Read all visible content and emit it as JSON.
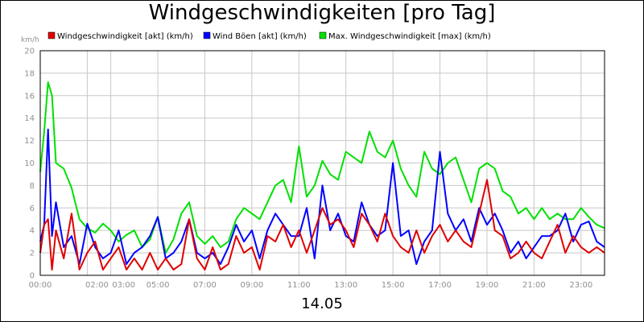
{
  "chart_data": {
    "type": "line",
    "title": "Windgeschwindigkeiten [pro Tag]",
    "xlabel": "14.05",
    "ylabel": "km/h",
    "ylim": [
      0,
      20
    ],
    "xlim": [
      "00:00",
      "24:00"
    ],
    "yticks": [
      "0",
      "2",
      "4",
      "6",
      "8",
      "10",
      "12",
      "14",
      "16",
      "18",
      "20"
    ],
    "xticks": [
      {
        "t": "00:00",
        "label": "00:00"
      },
      {
        "t": "02:00",
        "label": "02:00"
      },
      {
        "t": "03:00",
        "label": "03:00"
      },
      {
        "t": "05:00",
        "label": "05:00"
      },
      {
        "t": "07:00",
        "label": "07:00"
      },
      {
        "t": "09:00",
        "label": "09:00"
      },
      {
        "t": "11:00",
        "label": "11:00"
      },
      {
        "t": "13:00",
        "label": "13:00"
      },
      {
        "t": "15:00",
        "label": "15:00"
      },
      {
        "t": "17:00",
        "label": "17:00"
      },
      {
        "t": "19:00",
        "label": "19:00"
      },
      {
        "t": "21:00",
        "label": "21:00"
      },
      {
        "t": "23:00",
        "label": "23:00"
      }
    ],
    "grid": true,
    "legend_position": "top",
    "series": [
      {
        "name": "Max. Windgeschwindigkeit [max] (km/h)",
        "color": "#00e000",
        "x": [
          "00:00",
          "00:10",
          "00:20",
          "00:30",
          "00:40",
          "01:00",
          "01:20",
          "01:40",
          "02:00",
          "02:20",
          "02:40",
          "03:00",
          "03:20",
          "03:40",
          "04:00",
          "04:20",
          "04:40",
          "05:00",
          "05:20",
          "05:40",
          "06:00",
          "06:20",
          "06:40",
          "07:00",
          "07:20",
          "07:40",
          "08:00",
          "08:20",
          "08:40",
          "09:00",
          "09:20",
          "09:40",
          "10:00",
          "10:20",
          "10:40",
          "11:00",
          "11:20",
          "11:40",
          "12:00",
          "12:20",
          "12:40",
          "13:00",
          "13:20",
          "13:40",
          "14:00",
          "14:20",
          "14:40",
          "15:00",
          "15:20",
          "15:40",
          "16:00",
          "16:20",
          "16:40",
          "17:00",
          "17:20",
          "17:40",
          "18:00",
          "18:20",
          "18:40",
          "19:00",
          "19:20",
          "19:40",
          "20:00",
          "20:20",
          "20:40",
          "21:00",
          "21:20",
          "21:40",
          "22:00",
          "22:20",
          "22:40",
          "23:00",
          "23:20",
          "23:40",
          "24:00"
        ],
        "values": [
          9.2,
          12.8,
          17.2,
          16.0,
          10.0,
          9.5,
          7.8,
          5.0,
          4.2,
          3.8,
          4.6,
          4.0,
          3.0,
          3.6,
          4.0,
          2.5,
          3.2,
          5.2,
          2.0,
          3.2,
          5.5,
          6.5,
          3.5,
          2.8,
          3.5,
          2.5,
          3.0,
          5.0,
          6.0,
          5.5,
          5.0,
          6.5,
          8.0,
          8.5,
          6.5,
          11.5,
          7.0,
          8.0,
          10.2,
          9.0,
          8.5,
          11.0,
          10.5,
          10.0,
          12.8,
          11.0,
          10.5,
          12.0,
          9.5,
          8.0,
          7.0,
          11.0,
          9.5,
          9.0,
          10.0,
          10.5,
          8.5,
          6.5,
          9.5,
          10.0,
          9.5,
          7.5,
          7.0,
          5.5,
          6.0,
          5.0,
          6.0,
          5.0,
          5.5,
          5.0,
          5.0,
          6.0,
          5.2,
          4.5,
          4.2
        ]
      },
      {
        "name": "Wind Böen [akt] (km/h)",
        "color": "#0000ff",
        "x": [
          "00:00",
          "00:10",
          "00:20",
          "00:30",
          "00:40",
          "01:00",
          "01:20",
          "01:40",
          "02:00",
          "02:20",
          "02:40",
          "03:00",
          "03:20",
          "03:40",
          "04:00",
          "04:20",
          "04:40",
          "05:00",
          "05:20",
          "05:40",
          "06:00",
          "06:20",
          "06:40",
          "07:00",
          "07:20",
          "07:40",
          "08:00",
          "08:20",
          "08:40",
          "09:00",
          "09:20",
          "09:40",
          "10:00",
          "10:20",
          "10:40",
          "11:00",
          "11:20",
          "11:40",
          "12:00",
          "12:20",
          "12:40",
          "13:00",
          "13:20",
          "13:40",
          "14:00",
          "14:20",
          "14:40",
          "15:00",
          "15:20",
          "15:40",
          "16:00",
          "16:20",
          "16:40",
          "17:00",
          "17:20",
          "17:40",
          "18:00",
          "18:20",
          "18:40",
          "19:00",
          "19:20",
          "19:40",
          "20:00",
          "20:20",
          "20:40",
          "21:00",
          "21:20",
          "21:40",
          "22:00",
          "22:20",
          "22:40",
          "23:00",
          "23:20",
          "23:40",
          "24:00"
        ],
        "values": [
          3.0,
          4.5,
          13.0,
          3.5,
          6.5,
          2.5,
          3.5,
          1.0,
          4.6,
          2.5,
          1.5,
          2.0,
          4.0,
          1.0,
          2.0,
          2.5,
          3.5,
          5.2,
          1.5,
          2.0,
          3.0,
          5.0,
          2.0,
          1.5,
          2.0,
          1.0,
          2.5,
          4.5,
          3.0,
          4.0,
          1.5,
          4.0,
          5.5,
          4.5,
          3.5,
          3.5,
          6.0,
          1.5,
          8.0,
          4.0,
          5.5,
          3.5,
          3.0,
          6.5,
          4.5,
          3.5,
          4.0,
          10.0,
          3.5,
          4.0,
          1.0,
          3.0,
          4.0,
          11.0,
          5.5,
          4.0,
          5.0,
          3.0,
          6.0,
          4.5,
          5.5,
          4.0,
          2.0,
          3.0,
          1.5,
          2.5,
          3.5,
          3.5,
          4.0,
          5.5,
          3.0,
          4.5,
          4.8,
          3.0,
          2.5
        ]
      },
      {
        "name": "Windgeschwindigkeit [akt] (km/h)",
        "color": "#e00000",
        "x": [
          "00:00",
          "00:10",
          "00:20",
          "00:30",
          "00:40",
          "01:00",
          "01:20",
          "01:40",
          "02:00",
          "02:20",
          "02:40",
          "03:00",
          "03:20",
          "03:40",
          "04:00",
          "04:20",
          "04:40",
          "05:00",
          "05:20",
          "05:40",
          "06:00",
          "06:20",
          "06:40",
          "07:00",
          "07:20",
          "07:40",
          "08:00",
          "08:20",
          "08:40",
          "09:00",
          "09:20",
          "09:40",
          "10:00",
          "10:20",
          "10:40",
          "11:00",
          "11:20",
          "11:40",
          "12:00",
          "12:20",
          "12:40",
          "13:00",
          "13:20",
          "13:40",
          "14:00",
          "14:20",
          "14:40",
          "15:00",
          "15:20",
          "15:40",
          "16:00",
          "16:20",
          "16:40",
          "17:00",
          "17:20",
          "17:40",
          "18:00",
          "18:20",
          "18:40",
          "19:00",
          "19:20",
          "19:40",
          "20:00",
          "20:20",
          "20:40",
          "21:00",
          "21:20",
          "21:40",
          "22:00",
          "22:20",
          "22:40",
          "23:00",
          "23:20",
          "23:40",
          "24:00"
        ],
        "values": [
          2.0,
          4.5,
          5.0,
          0.5,
          4.0,
          1.5,
          5.5,
          0.5,
          2.0,
          3.0,
          0.5,
          1.5,
          2.5,
          0.5,
          1.5,
          0.5,
          2.0,
          0.5,
          1.5,
          0.5,
          1.0,
          5.0,
          1.5,
          0.5,
          2.5,
          0.5,
          1.0,
          3.5,
          2.0,
          2.5,
          0.5,
          3.5,
          3.0,
          4.5,
          2.5,
          4.0,
          2.0,
          4.0,
          6.0,
          4.5,
          5.0,
          4.0,
          2.5,
          5.5,
          4.5,
          3.0,
          5.5,
          3.5,
          2.5,
          2.0,
          4.0,
          2.0,
          3.5,
          4.5,
          3.0,
          4.0,
          3.0,
          2.5,
          5.5,
          8.5,
          4.0,
          3.5,
          1.5,
          2.0,
          3.0,
          2.0,
          1.5,
          3.0,
          4.5,
          2.0,
          3.5,
          2.5,
          2.0,
          2.5,
          2.0
        ]
      }
    ]
  }
}
